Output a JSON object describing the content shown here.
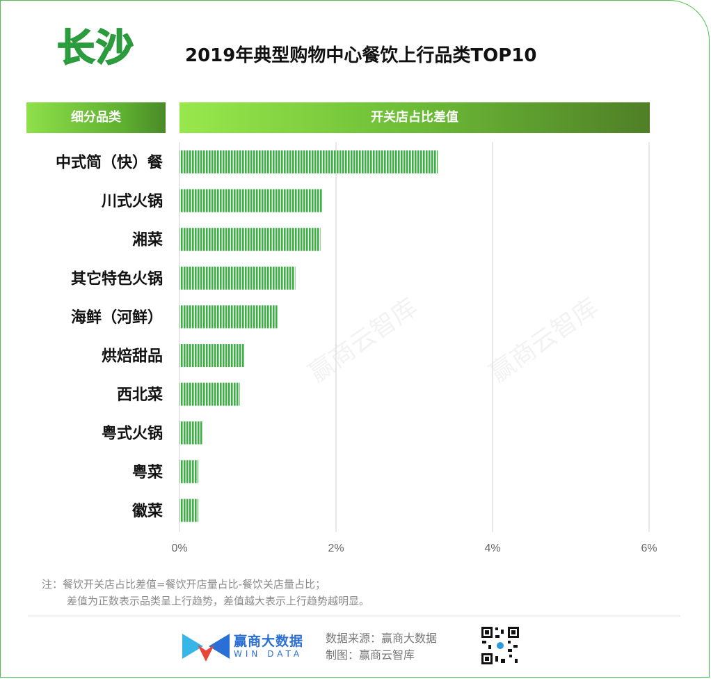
{
  "header": {
    "city": "长沙",
    "title": "2019年典型购物中心餐饮上行品类TOP10",
    "col_category": "细分品类",
    "col_value": "开关店占比差值"
  },
  "chart_data": {
    "type": "bar",
    "orientation": "horizontal",
    "categories": [
      "中式简（快）餐",
      "川式火锅",
      "湘菜",
      "其它特色火锅",
      "海鲜（河鲜）",
      "烘焙甜品",
      "西北菜",
      "粤式火锅",
      "粤菜",
      "徽菜"
    ],
    "values": [
      3.3,
      1.83,
      1.8,
      1.48,
      1.26,
      0.83,
      0.77,
      0.29,
      0.24,
      0.24
    ],
    "unit": "%",
    "xlim": [
      0,
      6
    ],
    "x_ticks": [
      0,
      2,
      4,
      6
    ],
    "x_tick_labels": [
      "0%",
      "2%",
      "4%",
      "6%"
    ],
    "grid": true,
    "bar_color": "#3cb043"
  },
  "notes": {
    "line1": "注：餐饮开关店占比差值=餐饮开店量占比-餐饮关店量占比；",
    "line2": "差值为正数表示品类呈上行趋势，差值越大表示上行趋势越明显。"
  },
  "footer": {
    "brand_name": "赢商大数据",
    "brand_sub": "WIN DATA",
    "source": "数据来源：赢商大数据",
    "maker": "制图：赢商云智库"
  },
  "watermark": "赢商云智库",
  "colors": {
    "accent": "#3cb043",
    "frame": "#4cc04a",
    "brand": "#2a6fd6"
  }
}
